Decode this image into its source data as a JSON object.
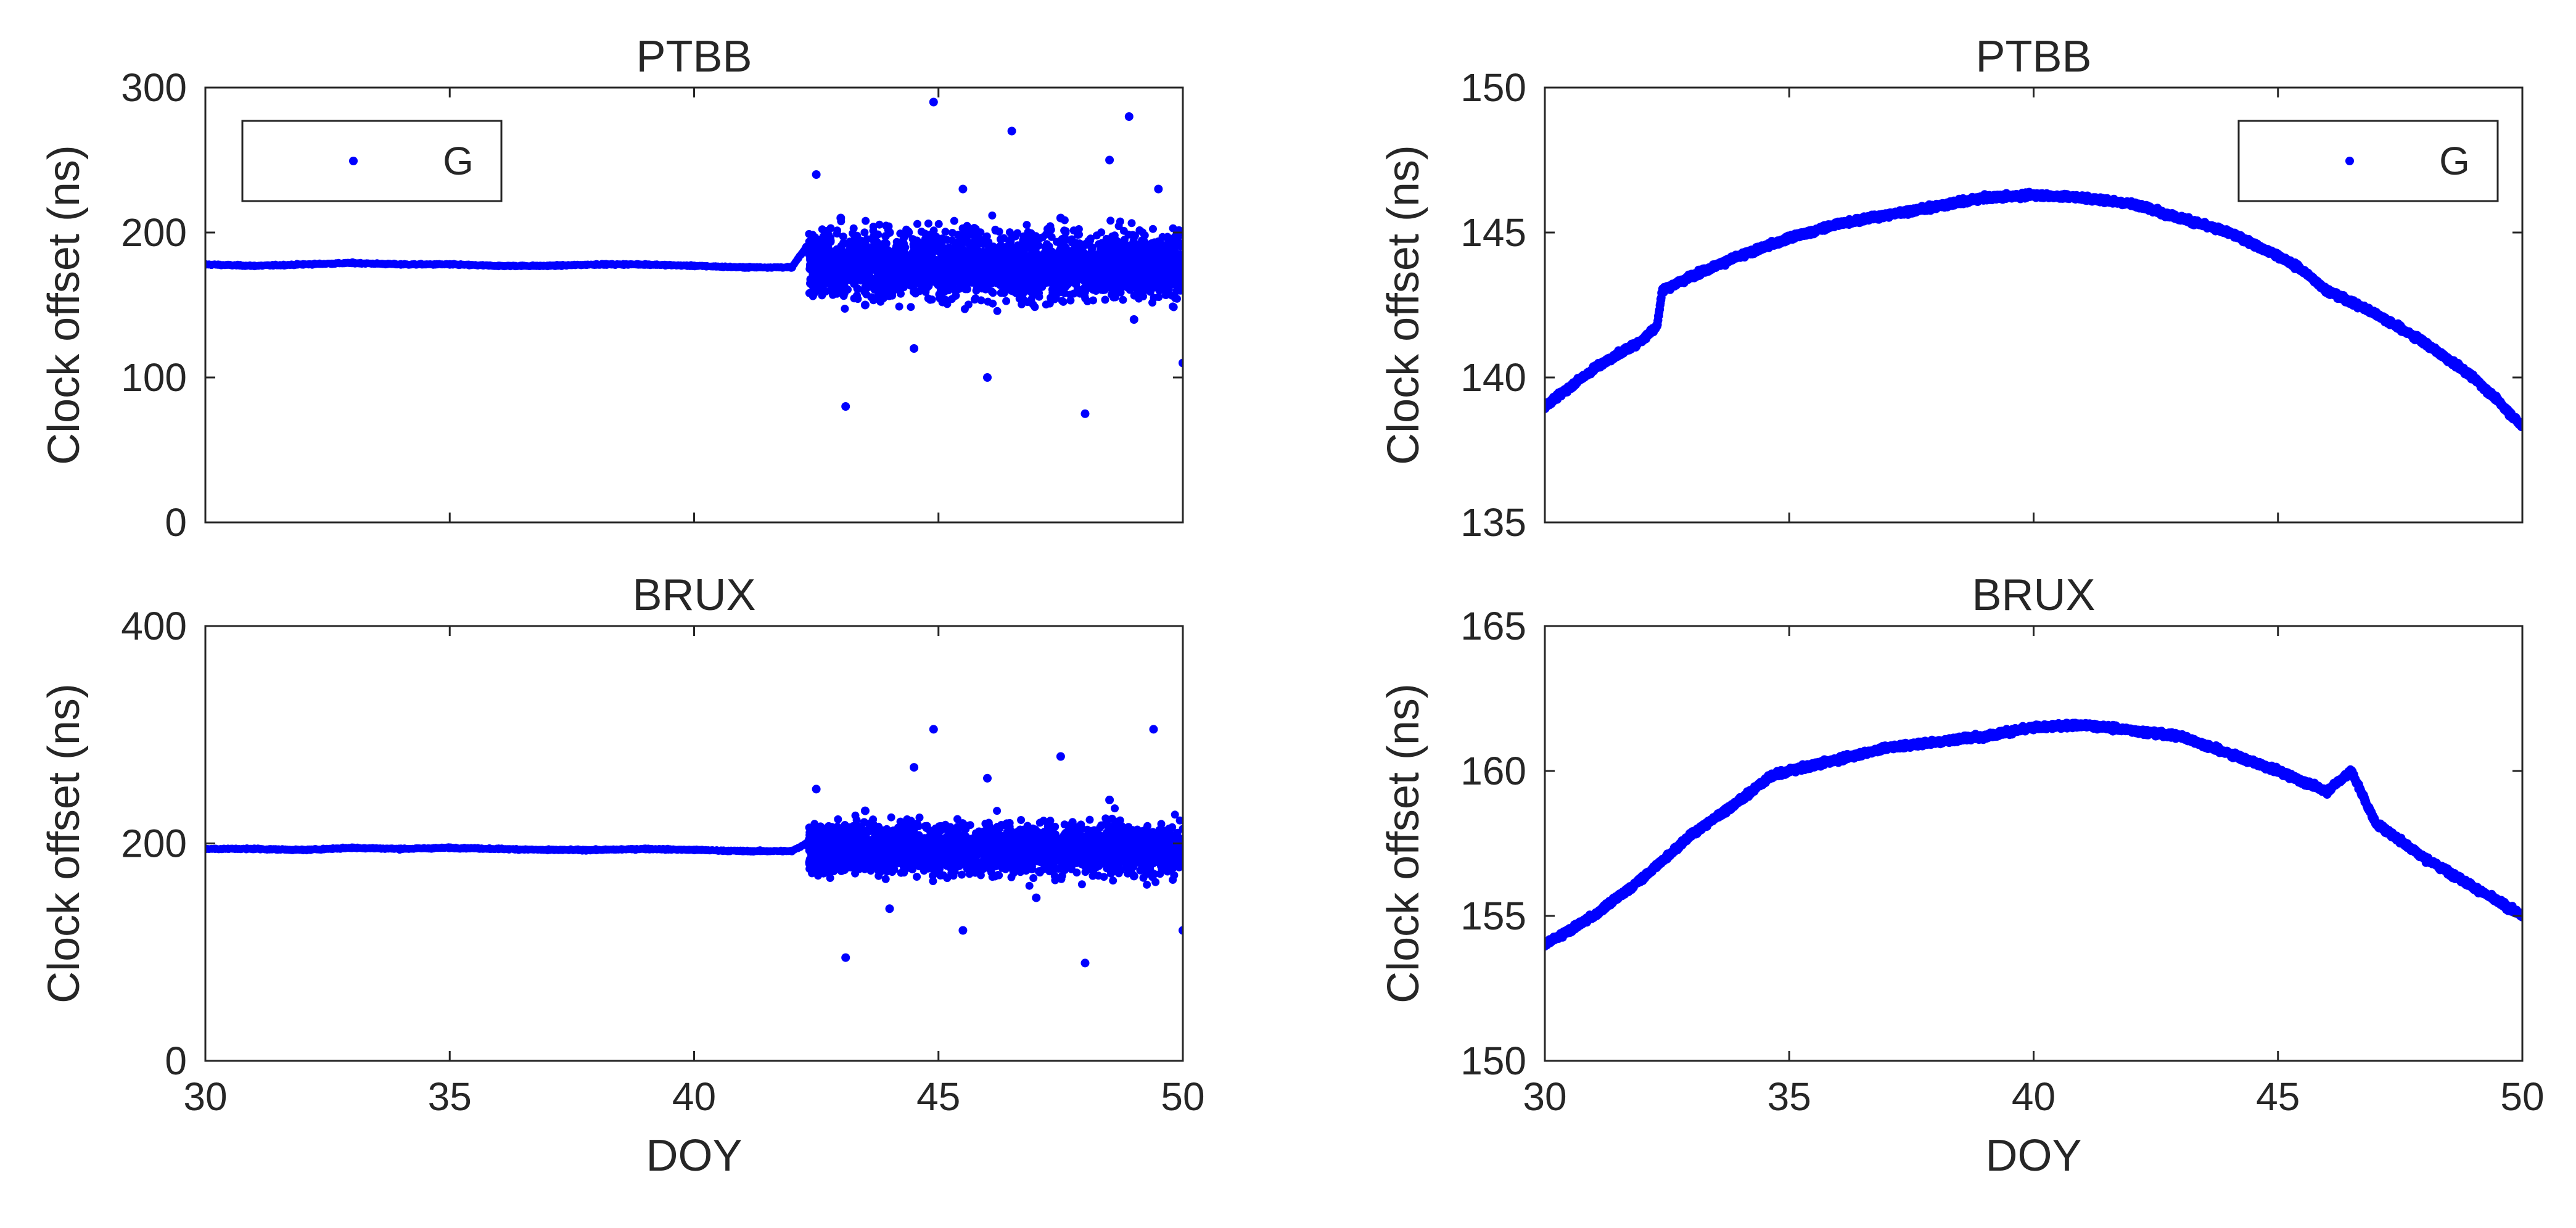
{
  "chart_data": [
    {
      "type": "scatter",
      "title": "PTBB",
      "xlabel": "",
      "ylabel": "Clock offset (ns)",
      "xlim": [
        30,
        50
      ],
      "ylim": [
        0,
        300
      ],
      "xticks": [
        30,
        35,
        40,
        45,
        50
      ],
      "yticks": [
        0,
        100,
        200,
        300
      ],
      "show_xtick_labels": false,
      "legend": {
        "entries": [
          "G"
        ],
        "placement": "top-left"
      },
      "series": [
        {
          "name": "G",
          "color": "#0000ff",
          "pattern": "stable level ≈178 ns from DOY 30 to 42.3, then scattered between about 80 and 290 ns around ≈178 ns up to DOY 50",
          "x": [
            30,
            31,
            32,
            33,
            34,
            35,
            36,
            37,
            38,
            39,
            40,
            41,
            42,
            42.3,
            42.5,
            43,
            43.1,
            43.5,
            44,
            44.5,
            44.9,
            45,
            45.5,
            46,
            46.5,
            47,
            47.5,
            48,
            48.5,
            48.9,
            49,
            49.5,
            50
          ],
          "y": [
            178,
            177,
            178,
            179,
            178,
            178,
            177,
            177,
            178,
            178,
            177,
            176,
            176,
            190,
            240,
            210,
            80,
            150,
            200,
            120,
            290,
            180,
            230,
            100,
            270,
            160,
            210,
            75,
            250,
            280,
            140,
            230,
            110
          ]
        }
      ]
    },
    {
      "type": "scatter",
      "title": "PTBB",
      "xlabel": "",
      "ylabel": "Clock offset (ns)",
      "xlim": [
        30,
        50
      ],
      "ylim": [
        135,
        150
      ],
      "xticks": [
        30,
        35,
        40,
        45,
        50
      ],
      "yticks": [
        135,
        140,
        145,
        150
      ],
      "show_xtick_labels": false,
      "legend": {
        "entries": [
          "G"
        ],
        "placement": "top-right"
      },
      "series": [
        {
          "name": "G",
          "color": "#0000ff",
          "pattern": "smooth arch rising from ≈139 ns to ≈146.3 ns near DOY 40, falling to ≈138 ns at DOY 50",
          "x": [
            30,
            31,
            32,
            32.3,
            32.4,
            33,
            34,
            35,
            36,
            37,
            38,
            39,
            40,
            41,
            42,
            43,
            44,
            45,
            45.5,
            46,
            47,
            48,
            49,
            49.5,
            50
          ],
          "y": [
            139.0,
            140.3,
            141.3,
            141.8,
            143.0,
            143.5,
            144.2,
            144.8,
            145.3,
            145.6,
            145.9,
            146.2,
            146.3,
            146.2,
            146.0,
            145.5,
            145.0,
            144.2,
            143.7,
            143.0,
            142.2,
            141.2,
            140.0,
            139.2,
            138.3
          ]
        }
      ]
    },
    {
      "type": "scatter",
      "title": "BRUX",
      "xlabel": "DOY",
      "ylabel": "Clock offset (ns)",
      "xlim": [
        30,
        50
      ],
      "ylim": [
        0,
        400
      ],
      "xticks": [
        30,
        35,
        40,
        45,
        50
      ],
      "yticks": [
        0,
        200,
        400
      ],
      "show_xtick_labels": true,
      "series": [
        {
          "name": "G",
          "color": "#0000ff",
          "pattern": "stable level ≈195 ns from DOY 30 to 42.3, then scattered between about 90 and 305 ns around ≈195 ns up to DOY 50",
          "x": [
            30,
            31,
            32,
            33,
            34,
            35,
            36,
            37,
            38,
            39,
            40,
            41,
            42,
            42.3,
            42.5,
            43,
            43.1,
            43.5,
            44,
            44.5,
            44.9,
            45,
            45.5,
            46,
            46.5,
            47,
            47.5,
            48,
            48.5,
            49,
            49.4,
            50
          ],
          "y": [
            195,
            195,
            194,
            196,
            195,
            196,
            195,
            194,
            194,
            195,
            194,
            193,
            193,
            200,
            250,
            180,
            95,
            230,
            140,
            270,
            305,
            190,
            120,
            260,
            210,
            150,
            280,
            90,
            240,
            170,
            305,
            120
          ]
        }
      ]
    },
    {
      "type": "scatter",
      "title": "BRUX",
      "xlabel": "DOY",
      "ylabel": "Clock offset (ns)",
      "xlim": [
        30,
        50
      ],
      "ylim": [
        150,
        165
      ],
      "xticks": [
        30,
        35,
        40,
        45,
        50
      ],
      "yticks": [
        150,
        155,
        160,
        165
      ],
      "show_xtick_labels": true,
      "series": [
        {
          "name": "G",
          "color": "#0000ff",
          "pattern": "smooth arch rising from ≈154 ns to ≈161.5 ns near DOY 41, bump near DOY 46.5, falling to ≈155 ns at DOY 50",
          "x": [
            30,
            31,
            32,
            33,
            34,
            34.6,
            35,
            36,
            37,
            38,
            39,
            40,
            41,
            42,
            43,
            44,
            45,
            46,
            46.5,
            47,
            48,
            49,
            50
          ],
          "y": [
            154.0,
            155.0,
            156.3,
            157.8,
            159.0,
            159.8,
            160.0,
            160.4,
            160.8,
            161.0,
            161.2,
            161.5,
            161.6,
            161.4,
            161.2,
            160.6,
            160.0,
            159.3,
            160.0,
            158.2,
            157.0,
            156.0,
            155.0
          ]
        }
      ]
    }
  ]
}
